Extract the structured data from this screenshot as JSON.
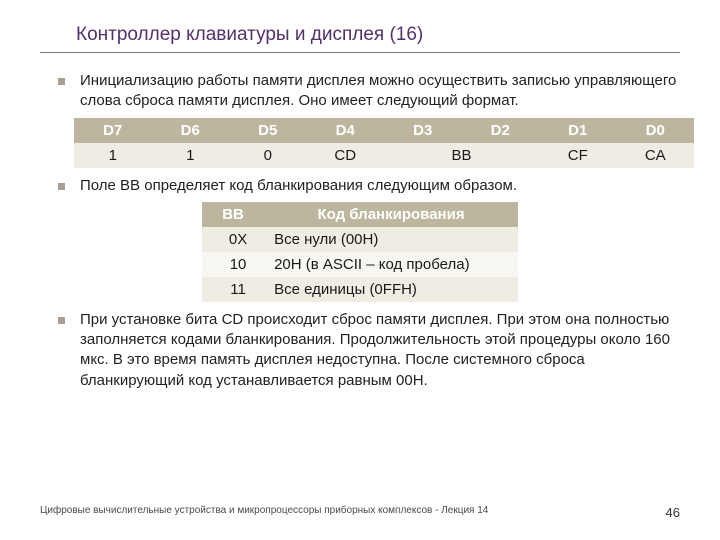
{
  "title": "Контроллер клавиатуры и дисплея (16)",
  "bullets": {
    "b1": "Инициализацию работы памяти дисплея можно осуществить записью управляющего слова сброса памяти дисплея. Оно имеет следующий формат.",
    "b2": "Поле BB определяет код бланкирования следующим образом.",
    "b3": "При установке бита CD происходит сброс памяти дисплея. При этом она полностью заполняется кодами бланкирования. Продолжительность этой процедуры около 160 мкс. В это время память дисплея недоступна. После системного сброса бланкирующий код устанавливается равным 00H."
  },
  "table1": {
    "headers": [
      "D7",
      "D6",
      "D5",
      "D4",
      "D3",
      "D2",
      "D1",
      "D0"
    ],
    "row": [
      "1",
      "1",
      "0",
      "CD",
      "BB",
      "CF",
      "CA"
    ]
  },
  "table2": {
    "headers": [
      "BB",
      "Код бланкирования"
    ],
    "rows": [
      [
        "0X",
        "Все нули (00H)"
      ],
      [
        "10",
        "20H (в ASCII – код пробела)"
      ],
      [
        "11",
        "Все единицы (0FFH)"
      ]
    ]
  },
  "footer": {
    "text": "Цифровые вычислительные устройства и микропроцессоры приборных комплексов - Лекция 14",
    "page": "46"
  }
}
